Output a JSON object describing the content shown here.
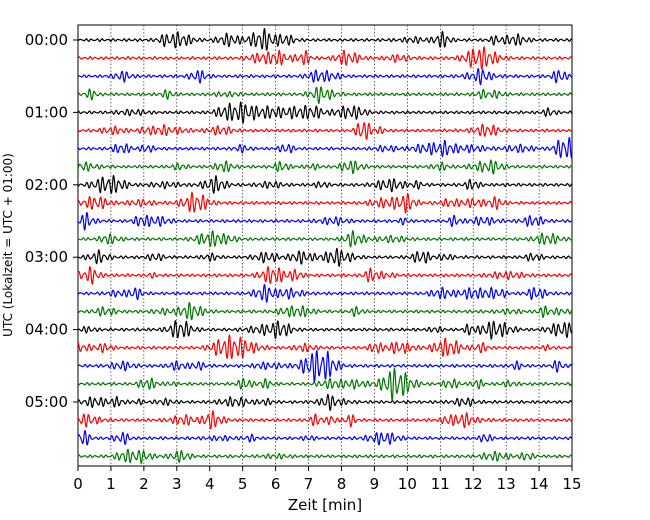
{
  "chart_data": {
    "type": "line",
    "title": "",
    "xlabel": "Zeit  [min]",
    "ylabel": "UTC (Lokalzeit = UTC + 01:00)",
    "xlim": [
      0,
      15
    ],
    "x_ticks": [
      0,
      1,
      2,
      3,
      4,
      5,
      6,
      7,
      8,
      9,
      10,
      11,
      12,
      13,
      14,
      15
    ],
    "y_tick_labels": [
      "00:00",
      "01:00",
      "02:00",
      "03:00",
      "04:00",
      "05:00"
    ],
    "rows_per_hour": 4,
    "row_interval_min": 15,
    "trace_count": 24,
    "trace_colors": [
      "#000000",
      "#ff0000",
      "#0000ff",
      "#007700"
    ],
    "grid": "vertical dotted lines at each minute",
    "legend": "none",
    "description_of_series": "helicorder seismogram: 24 traces of 15 minutes each, cycling black, red, blue, green"
  }
}
